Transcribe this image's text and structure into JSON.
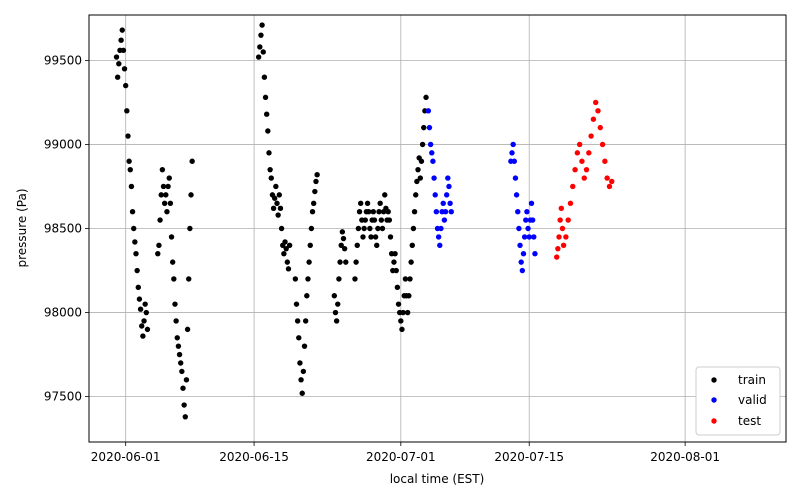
{
  "chart_data": {
    "type": "scatter",
    "xlabel": "local time (EST)",
    "ylabel": "pressure (Pa)",
    "x_ticks": [
      "2020-06-01",
      "2020-06-15",
      "2020-07-01",
      "2020-07-15",
      "2020-08-01"
    ],
    "y_ticks": [
      97500,
      98000,
      98500,
      99000,
      99500
    ],
    "xlim": [
      "2020-05-28",
      "2020-08-12"
    ],
    "ylim": [
      97230,
      99770
    ],
    "grid": true,
    "legend_position": "bottom-right",
    "series": [
      {
        "name": "train",
        "color": "#000000",
        "points": [
          [
            "2020-05-31T00:00",
            99520
          ],
          [
            "2020-05-31T03:00",
            99400
          ],
          [
            "2020-05-31T06:00",
            99480
          ],
          [
            "2020-05-31T09:00",
            99560
          ],
          [
            "2020-05-31T12:00",
            99620
          ],
          [
            "2020-05-31T15:00",
            99680
          ],
          [
            "2020-05-31T18:00",
            99560
          ],
          [
            "2020-05-31T21:00",
            99450
          ],
          [
            "2020-06-01T00:00",
            99350
          ],
          [
            "2020-06-01T03:00",
            99200
          ],
          [
            "2020-06-01T06:00",
            99050
          ],
          [
            "2020-06-01T09:00",
            98900
          ],
          [
            "2020-06-01T12:00",
            98850
          ],
          [
            "2020-06-01T15:00",
            98750
          ],
          [
            "2020-06-01T18:00",
            98600
          ],
          [
            "2020-06-01T21:00",
            98500
          ],
          [
            "2020-06-02T00:00",
            98420
          ],
          [
            "2020-06-02T03:00",
            98350
          ],
          [
            "2020-06-02T06:00",
            98250
          ],
          [
            "2020-06-02T09:00",
            98150
          ],
          [
            "2020-06-02T12:00",
            98080
          ],
          [
            "2020-06-02T15:00",
            98020
          ],
          [
            "2020-06-02T18:00",
            97920
          ],
          [
            "2020-06-02T21:00",
            97860
          ],
          [
            "2020-06-03T00:00",
            97950
          ],
          [
            "2020-06-03T03:00",
            98050
          ],
          [
            "2020-06-03T06:00",
            98000
          ],
          [
            "2020-06-03T09:00",
            97900
          ],
          [
            "2020-06-04T12:00",
            98350
          ],
          [
            "2020-06-04T15:00",
            98400
          ],
          [
            "2020-06-04T18:00",
            98550
          ],
          [
            "2020-06-04T21:00",
            98700
          ],
          [
            "2020-06-05T00:00",
            98850
          ],
          [
            "2020-06-05T03:00",
            98750
          ],
          [
            "2020-06-05T06:00",
            98650
          ],
          [
            "2020-06-05T09:00",
            98700
          ],
          [
            "2020-06-05T12:00",
            98600
          ],
          [
            "2020-06-05T15:00",
            98750
          ],
          [
            "2020-06-05T18:00",
            98800
          ],
          [
            "2020-06-05T21:00",
            98650
          ],
          [
            "2020-06-06T00:00",
            98450
          ],
          [
            "2020-06-06T03:00",
            98300
          ],
          [
            "2020-06-06T06:00",
            98200
          ],
          [
            "2020-06-06T09:00",
            98050
          ],
          [
            "2020-06-06T12:00",
            97950
          ],
          [
            "2020-06-06T15:00",
            97850
          ],
          [
            "2020-06-06T18:00",
            97800
          ],
          [
            "2020-06-06T21:00",
            97750
          ],
          [
            "2020-06-07T00:00",
            97700
          ],
          [
            "2020-06-07T03:00",
            97650
          ],
          [
            "2020-06-07T06:00",
            97550
          ],
          [
            "2020-06-07T09:00",
            97450
          ],
          [
            "2020-06-07T12:00",
            97380
          ],
          [
            "2020-06-07T15:00",
            97600
          ],
          [
            "2020-06-07T18:00",
            97900
          ],
          [
            "2020-06-07T21:00",
            98200
          ],
          [
            "2020-06-08T00:00",
            98500
          ],
          [
            "2020-06-08T03:00",
            98700
          ],
          [
            "2020-06-08T06:00",
            98900
          ],
          [
            "2020-06-15T12:00",
            99520
          ],
          [
            "2020-06-15T15:00",
            99580
          ],
          [
            "2020-06-15T18:00",
            99650
          ],
          [
            "2020-06-15T21:00",
            99710
          ],
          [
            "2020-06-16T00:00",
            99550
          ],
          [
            "2020-06-16T03:00",
            99400
          ],
          [
            "2020-06-16T06:00",
            99280
          ],
          [
            "2020-06-16T09:00",
            99180
          ],
          [
            "2020-06-16T12:00",
            99080
          ],
          [
            "2020-06-16T15:00",
            98950
          ],
          [
            "2020-06-16T18:00",
            98850
          ],
          [
            "2020-06-16T21:00",
            98800
          ],
          [
            "2020-06-17T00:00",
            98700
          ],
          [
            "2020-06-17T03:00",
            98620
          ],
          [
            "2020-06-17T06:00",
            98680
          ],
          [
            "2020-06-17T09:00",
            98750
          ],
          [
            "2020-06-17T12:00",
            98650
          ],
          [
            "2020-06-17T15:00",
            98580
          ],
          [
            "2020-06-17T18:00",
            98700
          ],
          [
            "2020-06-17T21:00",
            98620
          ],
          [
            "2020-06-18T00:00",
            98500
          ],
          [
            "2020-06-18T03:00",
            98400
          ],
          [
            "2020-06-18T06:00",
            98350
          ],
          [
            "2020-06-18T09:00",
            98420
          ],
          [
            "2020-06-18T12:00",
            98380
          ],
          [
            "2020-06-18T15:00",
            98300
          ],
          [
            "2020-06-18T18:00",
            98260
          ],
          [
            "2020-06-18T21:00",
            98400
          ],
          [
            "2020-06-19T12:00",
            98200
          ],
          [
            "2020-06-19T15:00",
            98050
          ],
          [
            "2020-06-19T18:00",
            97950
          ],
          [
            "2020-06-19T21:00",
            97850
          ],
          [
            "2020-06-20T00:00",
            97700
          ],
          [
            "2020-06-20T03:00",
            97600
          ],
          [
            "2020-06-20T06:00",
            97520
          ],
          [
            "2020-06-20T09:00",
            97650
          ],
          [
            "2020-06-20T12:00",
            97800
          ],
          [
            "2020-06-20T15:00",
            97950
          ],
          [
            "2020-06-20T18:00",
            98100
          ],
          [
            "2020-06-20T21:00",
            98200
          ],
          [
            "2020-06-21T00:00",
            98300
          ],
          [
            "2020-06-21T03:00",
            98400
          ],
          [
            "2020-06-21T06:00",
            98500
          ],
          [
            "2020-06-21T09:00",
            98600
          ],
          [
            "2020-06-21T12:00",
            98650
          ],
          [
            "2020-06-21T15:00",
            98720
          ],
          [
            "2020-06-21T18:00",
            98780
          ],
          [
            "2020-06-21T21:00",
            98820
          ],
          [
            "2020-06-23T18:00",
            98100
          ],
          [
            "2020-06-23T21:00",
            98000
          ],
          [
            "2020-06-24T00:00",
            97950
          ],
          [
            "2020-06-24T03:00",
            98050
          ],
          [
            "2020-06-24T06:00",
            98200
          ],
          [
            "2020-06-24T09:00",
            98300
          ],
          [
            "2020-06-24T12:00",
            98400
          ],
          [
            "2020-06-24T15:00",
            98480
          ],
          [
            "2020-06-24T18:00",
            98440
          ],
          [
            "2020-06-24T21:00",
            98380
          ],
          [
            "2020-06-25T00:00",
            98300
          ],
          [
            "2020-06-26T00:00",
            98200
          ],
          [
            "2020-06-26T03:00",
            98300
          ],
          [
            "2020-06-26T06:00",
            98400
          ],
          [
            "2020-06-26T09:00",
            98500
          ],
          [
            "2020-06-26T12:00",
            98600
          ],
          [
            "2020-06-26T15:00",
            98650
          ],
          [
            "2020-06-26T18:00",
            98550
          ],
          [
            "2020-06-26T21:00",
            98450
          ],
          [
            "2020-06-27T00:00",
            98500
          ],
          [
            "2020-06-27T03:00",
            98550
          ],
          [
            "2020-06-27T06:00",
            98600
          ],
          [
            "2020-06-27T09:00",
            98650
          ],
          [
            "2020-06-27T12:00",
            98600
          ],
          [
            "2020-06-27T15:00",
            98500
          ],
          [
            "2020-06-27T18:00",
            98450
          ],
          [
            "2020-06-27T21:00",
            98550
          ],
          [
            "2020-06-28T00:00",
            98600
          ],
          [
            "2020-06-28T03:00",
            98550
          ],
          [
            "2020-06-28T06:00",
            98450
          ],
          [
            "2020-06-28T09:00",
            98400
          ],
          [
            "2020-06-28T12:00",
            98500
          ],
          [
            "2020-06-28T15:00",
            98600
          ],
          [
            "2020-06-28T18:00",
            98650
          ],
          [
            "2020-06-28T21:00",
            98550
          ],
          [
            "2020-06-29T00:00",
            98500
          ],
          [
            "2020-06-29T03:00",
            98600
          ],
          [
            "2020-06-29T06:00",
            98700
          ],
          [
            "2020-06-29T09:00",
            98620
          ],
          [
            "2020-06-29T12:00",
            98550
          ],
          [
            "2020-06-29T15:00",
            98600
          ],
          [
            "2020-06-29T18:00",
            98550
          ],
          [
            "2020-06-29T21:00",
            98450
          ],
          [
            "2020-06-30T00:00",
            98350
          ],
          [
            "2020-06-30T03:00",
            98250
          ],
          [
            "2020-06-30T06:00",
            98300
          ],
          [
            "2020-06-30T09:00",
            98350
          ],
          [
            "2020-06-30T12:00",
            98250
          ],
          [
            "2020-06-30T15:00",
            98150
          ],
          [
            "2020-06-30T18:00",
            98050
          ],
          [
            "2020-06-30T21:00",
            98000
          ],
          [
            "2020-07-01T00:00",
            97950
          ],
          [
            "2020-07-01T03:00",
            97900
          ],
          [
            "2020-07-01T06:00",
            98000
          ],
          [
            "2020-07-01T09:00",
            98100
          ],
          [
            "2020-07-01T12:00",
            98200
          ],
          [
            "2020-07-01T15:00",
            98100
          ],
          [
            "2020-07-01T18:00",
            98000
          ],
          [
            "2020-07-01T21:00",
            98100
          ],
          [
            "2020-07-02T00:00",
            98200
          ],
          [
            "2020-07-02T03:00",
            98300
          ],
          [
            "2020-07-02T06:00",
            98400
          ],
          [
            "2020-07-02T09:00",
            98500
          ],
          [
            "2020-07-02T12:00",
            98600
          ],
          [
            "2020-07-02T15:00",
            98700
          ],
          [
            "2020-07-02T18:00",
            98780
          ],
          [
            "2020-07-02T21:00",
            98850
          ],
          [
            "2020-07-03T00:00",
            98920
          ],
          [
            "2020-07-03T03:00",
            98800
          ],
          [
            "2020-07-03T06:00",
            98900
          ],
          [
            "2020-07-03T09:00",
            99000
          ],
          [
            "2020-07-03T12:00",
            99100
          ],
          [
            "2020-07-03T15:00",
            99200
          ],
          [
            "2020-07-03T18:00",
            99280
          ]
        ]
      },
      {
        "name": "valid",
        "color": "#0000ff",
        "points": [
          [
            "2020-07-04T00:00",
            99200
          ],
          [
            "2020-07-04T03:00",
            99100
          ],
          [
            "2020-07-04T06:00",
            99000
          ],
          [
            "2020-07-04T09:00",
            98950
          ],
          [
            "2020-07-04T12:00",
            98900
          ],
          [
            "2020-07-04T15:00",
            98800
          ],
          [
            "2020-07-04T18:00",
            98700
          ],
          [
            "2020-07-04T21:00",
            98600
          ],
          [
            "2020-07-05T00:00",
            98500
          ],
          [
            "2020-07-05T03:00",
            98450
          ],
          [
            "2020-07-05T06:00",
            98400
          ],
          [
            "2020-07-05T09:00",
            98500
          ],
          [
            "2020-07-05T12:00",
            98600
          ],
          [
            "2020-07-05T15:00",
            98650
          ],
          [
            "2020-07-05T18:00",
            98550
          ],
          [
            "2020-07-05T21:00",
            98600
          ],
          [
            "2020-07-06T00:00",
            98700
          ],
          [
            "2020-07-06T03:00",
            98800
          ],
          [
            "2020-07-06T06:00",
            98750
          ],
          [
            "2020-07-06T09:00",
            98650
          ],
          [
            "2020-07-06T12:00",
            98600
          ],
          [
            "2020-07-13T00:00",
            98900
          ],
          [
            "2020-07-13T03:00",
            98950
          ],
          [
            "2020-07-13T06:00",
            99000
          ],
          [
            "2020-07-13T09:00",
            98900
          ],
          [
            "2020-07-13T12:00",
            98800
          ],
          [
            "2020-07-13T15:00",
            98700
          ],
          [
            "2020-07-13T18:00",
            98600
          ],
          [
            "2020-07-13T21:00",
            98500
          ],
          [
            "2020-07-14T00:00",
            98400
          ],
          [
            "2020-07-14T03:00",
            98300
          ],
          [
            "2020-07-14T06:00",
            98250
          ],
          [
            "2020-07-14T09:00",
            98350
          ],
          [
            "2020-07-14T12:00",
            98450
          ],
          [
            "2020-07-14T15:00",
            98550
          ],
          [
            "2020-07-14T18:00",
            98600
          ],
          [
            "2020-07-14T21:00",
            98500
          ],
          [
            "2020-07-15T00:00",
            98450
          ],
          [
            "2020-07-15T03:00",
            98550
          ],
          [
            "2020-07-15T06:00",
            98650
          ],
          [
            "2020-07-15T09:00",
            98550
          ],
          [
            "2020-07-15T12:00",
            98450
          ],
          [
            "2020-07-15T15:00",
            98350
          ]
        ]
      },
      {
        "name": "test",
        "color": "#ff0000",
        "points": [
          [
            "2020-07-18T00:00",
            98330
          ],
          [
            "2020-07-18T03:00",
            98380
          ],
          [
            "2020-07-18T06:00",
            98450
          ],
          [
            "2020-07-18T09:00",
            98550
          ],
          [
            "2020-07-18T12:00",
            98620
          ],
          [
            "2020-07-18T15:00",
            98500
          ],
          [
            "2020-07-18T18:00",
            98400
          ],
          [
            "2020-07-19T00:00",
            98450
          ],
          [
            "2020-07-19T06:00",
            98550
          ],
          [
            "2020-07-19T12:00",
            98650
          ],
          [
            "2020-07-19T18:00",
            98750
          ],
          [
            "2020-07-20T00:00",
            98850
          ],
          [
            "2020-07-20T06:00",
            98950
          ],
          [
            "2020-07-20T12:00",
            99000
          ],
          [
            "2020-07-20T18:00",
            98900
          ],
          [
            "2020-07-21T00:00",
            98800
          ],
          [
            "2020-07-21T06:00",
            98850
          ],
          [
            "2020-07-21T12:00",
            98950
          ],
          [
            "2020-07-21T18:00",
            99050
          ],
          [
            "2020-07-22T00:00",
            99150
          ],
          [
            "2020-07-22T06:00",
            99250
          ],
          [
            "2020-07-22T12:00",
            99200
          ],
          [
            "2020-07-22T18:00",
            99100
          ],
          [
            "2020-07-23T00:00",
            99000
          ],
          [
            "2020-07-23T06:00",
            98900
          ],
          [
            "2020-07-23T12:00",
            98800
          ],
          [
            "2020-07-23T18:00",
            98750
          ],
          [
            "2020-07-24T00:00",
            98780
          ]
        ]
      }
    ]
  }
}
